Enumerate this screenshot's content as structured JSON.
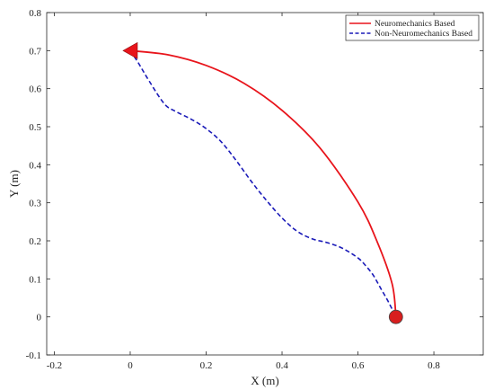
{
  "chart_data": {
    "type": "line",
    "title": "",
    "xlabel": "X (m)",
    "ylabel": "Y (m)",
    "xlim": [
      -0.22,
      0.93
    ],
    "ylim": [
      -0.1,
      0.8
    ],
    "xticks": [
      -0.2,
      0,
      0.2,
      0.4,
      0.6,
      0.8
    ],
    "yticks": [
      -0.1,
      0,
      0.1,
      0.2,
      0.3,
      0.4,
      0.5,
      0.6,
      0.7,
      0.8
    ],
    "xtick_labels": [
      "-0.2",
      "0",
      "0.2",
      "0.4",
      "0.6",
      "0.8"
    ],
    "ytick_labels": [
      "-0.1",
      "0",
      "0.1",
      "0.2",
      "0.3",
      "0.4",
      "0.5",
      "0.6",
      "0.7",
      "0.8"
    ],
    "grid": false,
    "legend_position": "top-right",
    "series": [
      {
        "name": "Neuromechanics Based",
        "color": "#e8141b",
        "style": "solid",
        "x": [
          0.0,
          0.1,
          0.2,
          0.3,
          0.4,
          0.5,
          0.6,
          0.65,
          0.69,
          0.7
        ],
        "y": [
          0.7,
          0.689,
          0.661,
          0.614,
          0.543,
          0.444,
          0.302,
          0.199,
          0.087,
          0.0
        ]
      },
      {
        "name": "Non-Neuromechanics Based",
        "color": "#1a1ab8",
        "style": "dashed",
        "x": [
          0.0,
          0.02,
          0.05,
          0.09,
          0.12,
          0.16,
          0.2,
          0.24,
          0.28,
          0.32,
          0.36,
          0.4,
          0.44,
          0.48,
          0.52,
          0.56,
          0.6,
          0.62,
          0.64,
          0.66,
          0.68,
          0.7
        ],
        "y": [
          0.7,
          0.67,
          0.62,
          0.56,
          0.54,
          0.52,
          0.495,
          0.46,
          0.41,
          0.355,
          0.305,
          0.26,
          0.225,
          0.205,
          0.195,
          0.18,
          0.155,
          0.135,
          0.11,
          0.075,
          0.04,
          0.0
        ]
      }
    ],
    "markers": [
      {
        "shape": "triangle-left",
        "x": 0.0,
        "y": 0.7,
        "color": "#e8141b"
      },
      {
        "shape": "circle",
        "x": 0.7,
        "y": 0.0,
        "color": "#d81e1e"
      }
    ]
  }
}
